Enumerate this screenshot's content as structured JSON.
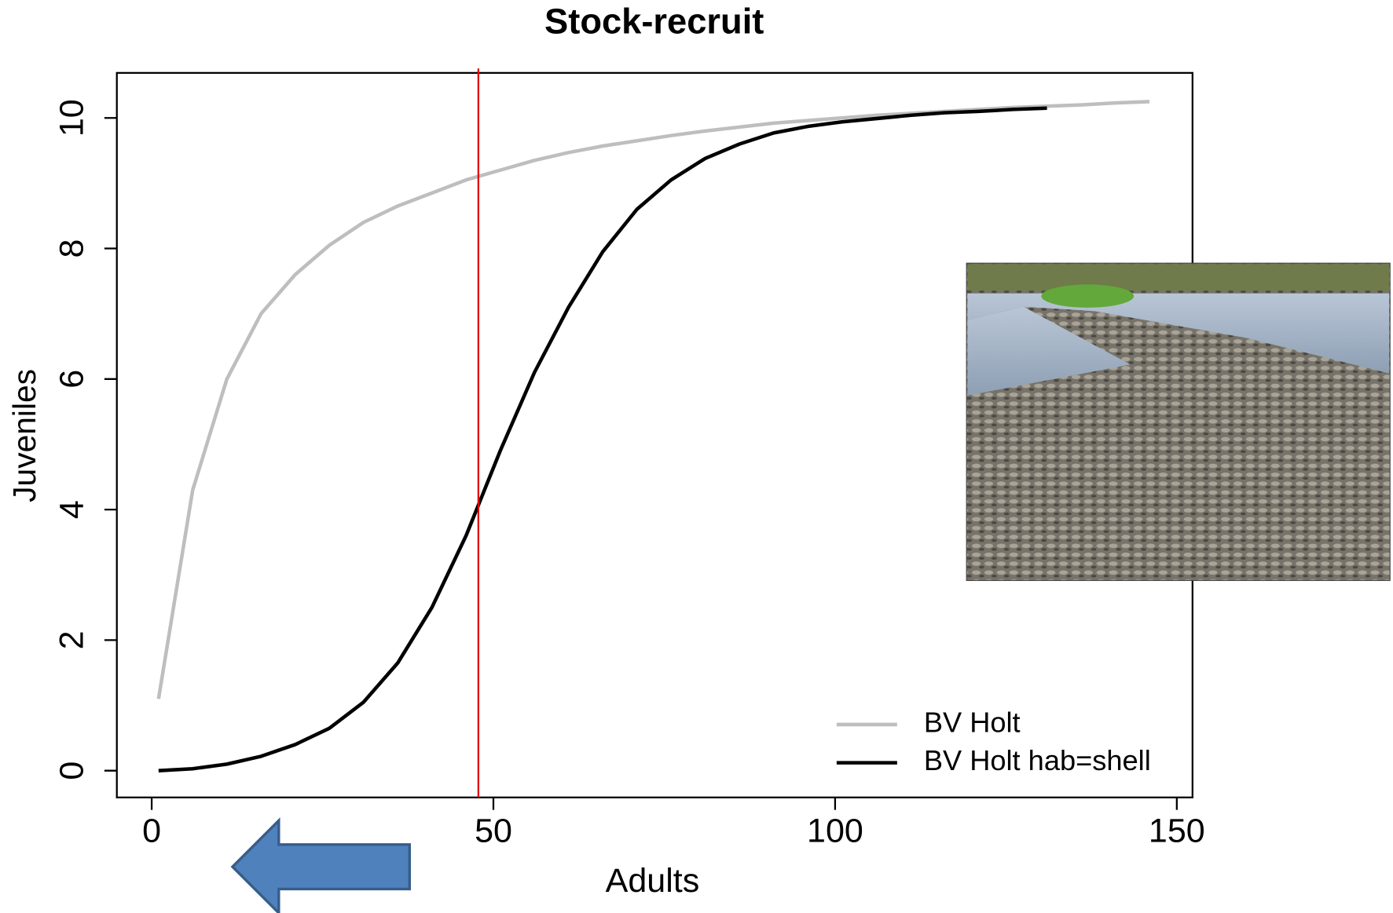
{
  "chart_data": {
    "type": "line",
    "title": "Stock-recruit",
    "x_label": "Adults",
    "y_label": "Juveniles",
    "xlim": [
      -5.1,
      152.3
    ],
    "ylim": [
      -0.41,
      10.69
    ],
    "xticks": [
      0,
      50,
      100,
      150
    ],
    "yticks": [
      0,
      2,
      4,
      6,
      8,
      10
    ],
    "legend": "bottom-right",
    "vline": {
      "x": 47.8,
      "color": "#e00000"
    },
    "series": [
      {
        "name": "BV Holt",
        "color": "#bebebe",
        "x": [
          1,
          6,
          11,
          16,
          21,
          26,
          31,
          36,
          41,
          46,
          51,
          56,
          61,
          66,
          71,
          76,
          81,
          86,
          91,
          96,
          101,
          106,
          111,
          116,
          121,
          126,
          131,
          136,
          141,
          146
        ],
        "values": [
          1.1,
          4.3,
          6,
          7,
          7.6,
          8.05,
          8.4,
          8.65,
          8.85,
          9.05,
          9.2,
          9.35,
          9.47,
          9.57,
          9.65,
          9.73,
          9.8,
          9.86,
          9.92,
          9.96,
          10,
          10.04,
          10.07,
          10.1,
          10.13,
          10.16,
          10.18,
          10.2,
          10.23,
          10.25
        ]
      },
      {
        "name": "BV Holt hab=shell",
        "color": "#000000",
        "x": [
          1,
          6,
          11,
          16,
          21,
          26,
          31,
          36,
          41,
          46,
          51,
          56,
          61,
          66,
          71,
          76,
          81,
          86,
          91,
          96,
          101,
          106,
          111,
          116,
          121,
          126,
          131
        ],
        "values": [
          0,
          0.03,
          0.1,
          0.22,
          0.4,
          0.65,
          1.05,
          1.65,
          2.5,
          3.6,
          4.9,
          6.1,
          7.1,
          7.95,
          8.6,
          9.05,
          9.38,
          9.6,
          9.77,
          9.87,
          9.94,
          9.99,
          10.04,
          10.08,
          10.1,
          10.13,
          10.15
        ]
      }
    ]
  }
}
